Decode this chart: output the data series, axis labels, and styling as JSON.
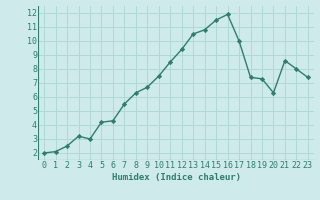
{
  "x": [
    0,
    1,
    2,
    3,
    4,
    5,
    6,
    7,
    8,
    9,
    10,
    11,
    12,
    13,
    14,
    15,
    16,
    17,
    18,
    19,
    20,
    21,
    22,
    23
  ],
  "y": [
    2.0,
    2.1,
    2.5,
    3.2,
    3.0,
    4.2,
    4.3,
    5.5,
    6.3,
    6.7,
    7.5,
    8.5,
    9.4,
    10.5,
    10.8,
    11.5,
    11.9,
    10.0,
    7.4,
    7.3,
    6.3,
    8.6,
    8.0,
    7.4
  ],
  "line_color": "#2e7d6e",
  "marker": "D",
  "marker_size": 2.2,
  "bg_color": "#ceeaea",
  "grid_color": "#b0d8d8",
  "xlabel": "Humidex (Indice chaleur)",
  "xlim": [
    -0.5,
    23.5
  ],
  "ylim": [
    1.5,
    12.5
  ],
  "yticks": [
    2,
    3,
    4,
    5,
    6,
    7,
    8,
    9,
    10,
    11,
    12
  ],
  "xticks": [
    0,
    1,
    2,
    3,
    4,
    5,
    6,
    7,
    8,
    9,
    10,
    11,
    12,
    13,
    14,
    15,
    16,
    17,
    18,
    19,
    20,
    21,
    22,
    23
  ],
  "label_fontsize": 6.5,
  "tick_fontsize": 6.0,
  "linewidth": 1.0
}
